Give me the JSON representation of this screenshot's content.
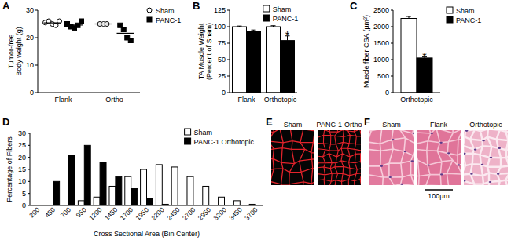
{
  "chart_data": [
    {
      "type": "scatter",
      "title": "A",
      "ylabel": [
        "Tumor-free",
        "Body weight (g)"
      ],
      "categories": [
        "Flank",
        "Ortho"
      ],
      "ylim": [
        0,
        30
      ],
      "yticks": [
        0,
        10,
        20,
        30
      ],
      "legend": "right",
      "series": [
        {
          "name": "Sham",
          "marker": "circle",
          "color": "#ffffff",
          "values": [
            [
              25.5,
              26,
              25,
              24.5,
              26
            ],
            [
              25,
              25,
              25
            ]
          ],
          "means": [
            25.4,
            25
          ]
        },
        {
          "name": "PANC-1",
          "marker": "square",
          "color": "#000000",
          "values": [
            [
              25,
              24,
              23.5,
              24.5,
              26
            ],
            [
              24.5,
              23,
              20,
              19
            ]
          ],
          "means": [
            24.6,
            21.6
          ]
        }
      ]
    },
    {
      "type": "bar",
      "title": "B",
      "ylabel": [
        "TA Muscle Weight",
        "(Percent of Sham)"
      ],
      "categories": [
        "Flank",
        "Orthotopic"
      ],
      "ylim": [
        0,
        125
      ],
      "yticks": [
        0,
        25,
        50,
        75,
        100,
        125
      ],
      "legend": "top-right",
      "series": [
        {
          "name": "Sham",
          "color": "#ffffff",
          "values": [
            100,
            100
          ],
          "errors": [
            1,
            1.5
          ]
        },
        {
          "name": "PANC-1",
          "color": "#000000",
          "values": [
            93,
            79
          ],
          "errors": [
            2,
            7
          ]
        }
      ],
      "annotations": [
        {
          "text": "*",
          "category": 1,
          "series": 1
        }
      ]
    },
    {
      "type": "bar",
      "title": "C",
      "ylabel": [
        "Muscle fiber CSA (µm²)"
      ],
      "categories": [
        "Orthotopic"
      ],
      "ylim": [
        0,
        2500
      ],
      "yticks": [
        0,
        500,
        1000,
        1500,
        2000,
        2500
      ],
      "legend": "right",
      "series": [
        {
          "name": "Sham",
          "color": "#ffffff",
          "values": [
            2250
          ],
          "errors": [
            60
          ]
        },
        {
          "name": "PANC-1",
          "color": "#000000",
          "values": [
            1050
          ],
          "errors": [
            30
          ]
        }
      ],
      "annotations": [
        {
          "text": "*",
          "category": 0,
          "series": 1
        }
      ]
    },
    {
      "type": "bar",
      "title": "D",
      "ylabel": [
        "Percentage of Fibers"
      ],
      "xlabel": "Cross Sectional Area (Bin Center)",
      "categories": [
        200,
        450,
        700,
        950,
        1200,
        1450,
        1700,
        1950,
        2200,
        2450,
        2700,
        2950,
        3200,
        3450,
        3700
      ],
      "ylim": [
        0,
        30
      ],
      "yticks": [
        0,
        5,
        10,
        15,
        20,
        25,
        30
      ],
      "legend": "top-right",
      "series": [
        {
          "name": "Sham",
          "color": "#ffffff",
          "values": [
            0,
            0,
            0,
            2,
            3.5,
            8,
            12,
            15,
            17,
            16,
            12,
            8,
            3.5,
            2,
            0.5
          ]
        },
        {
          "name": "PANC-1 Orthotopic",
          "color": "#000000",
          "values": [
            0,
            10,
            21,
            25,
            18,
            12,
            7,
            3,
            0.5,
            0,
            0,
            0,
            0,
            0,
            0
          ]
        }
      ]
    }
  ],
  "panels": [
    {
      "label": "E",
      "captions": [
        "Sham",
        "PANC-1-Ortho"
      ]
    },
    {
      "label": "F",
      "captions": [
        "Sham",
        "Flank",
        "Orthotopic"
      ],
      "scale_bar": "100µm"
    }
  ]
}
